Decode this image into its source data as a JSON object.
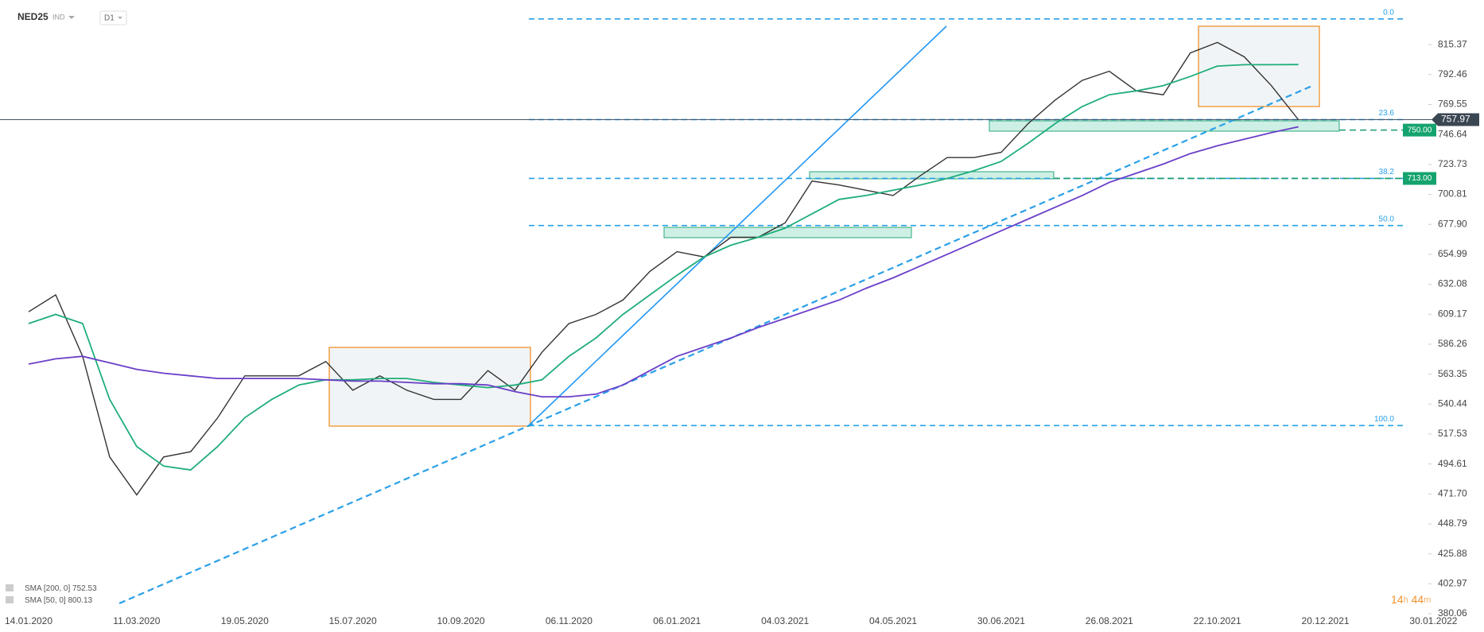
{
  "header": {
    "symbol": "NED25",
    "kind": "IND",
    "interval": "D1"
  },
  "chart_data": {
    "type": "line",
    "categories": [
      "14.01.2020",
      null,
      null,
      null,
      "11.03.2020",
      null,
      null,
      null,
      "19.05.2020",
      null,
      null,
      null,
      "15.07.2020",
      null,
      null,
      null,
      "10.09.2020",
      null,
      null,
      null,
      "06.11.2020",
      null,
      null,
      null,
      "06.01.2021",
      null,
      null,
      null,
      "04.03.2021",
      null,
      null,
      null,
      "04.05.2021",
      null,
      null,
      null,
      "30.06.2021",
      null,
      null,
      null,
      "26.08.2021",
      null,
      null,
      null,
      "22.10.2021",
      null,
      null,
      null,
      "20.12.2021",
      null,
      null,
      null,
      "30.01.2022"
    ],
    "series": [
      {
        "name": "NED25",
        "color": "#333333",
        "values": [
          611,
          624,
          577,
          500,
          471,
          500,
          504,
          530,
          562,
          562,
          562,
          573,
          551,
          562,
          551,
          544,
          544,
          566,
          551,
          580,
          602,
          609,
          620,
          642,
          657,
          653,
          668,
          668,
          679,
          711,
          708,
          704,
          700,
          715,
          729,
          729,
          733,
          755,
          773,
          788,
          795,
          780,
          777,
          809,
          817,
          806,
          784,
          757.97,
          null,
          null,
          null,
          null,
          null
        ]
      },
      {
        "name": "SMA [50, 0]",
        "color": "#1fae7a",
        "last_value": 800.13,
        "values": [
          602,
          609,
          602,
          544,
          508,
          493,
          490,
          508,
          530,
          544,
          555,
          559,
          559,
          560,
          560,
          557,
          555,
          553,
          555,
          559,
          577,
          591,
          609,
          624,
          639,
          653,
          662,
          668,
          675,
          686,
          697,
          700,
          704,
          708,
          713,
          719,
          726,
          740,
          755,
          768,
          777,
          780,
          784,
          791,
          799,
          800,
          800,
          800.13,
          null,
          null,
          null,
          null,
          null
        ]
      },
      {
        "name": "SMA [200, 0]",
        "color": "#6a3fc8",
        "last_value": 752.53,
        "values": [
          571,
          575,
          577,
          572,
          567,
          564,
          562,
          560,
          560,
          560,
          560,
          559,
          558,
          558,
          557,
          556,
          556,
          555,
          550,
          546,
          546,
          548,
          555,
          566,
          577,
          584,
          591,
          599,
          606,
          613,
          620,
          629,
          637,
          646,
          655,
          664,
          673,
          682,
          691,
          700,
          710,
          717,
          724,
          732,
          738,
          743,
          748,
          752.53,
          null,
          null,
          null,
          null,
          null
        ]
      }
    ],
    "ylim": [
      381.3,
      849.5
    ],
    "yticks": [
      380.06,
      402.97,
      425.88,
      448.79,
      {
        "value": 471.7,
        "label": "471.70"
      },
      494.61,
      517.53,
      540.44,
      563.35,
      586.26,
      609.17,
      632.08,
      654.99,
      {
        "value": 677.9,
        "label": "677.90"
      },
      700.81,
      723.73,
      746.64,
      769.55,
      792.46,
      815.37
    ],
    "last_price": 757.97,
    "levels": [
      {
        "value": 750,
        "label": "750.00"
      },
      {
        "value": 713,
        "label": "713.00"
      }
    ],
    "fib_levels": [
      {
        "label": "0.0",
        "price": 835
      },
      {
        "label": "23.6",
        "price": 758
      },
      {
        "label": "38.2",
        "price": 713
      },
      {
        "label": "50.0",
        "price": 677
      },
      {
        "label": "100.0",
        "price": 524
      }
    ]
  },
  "timer": {
    "hours": "14",
    "h": "h",
    "minutes": "44",
    "m": "m"
  }
}
